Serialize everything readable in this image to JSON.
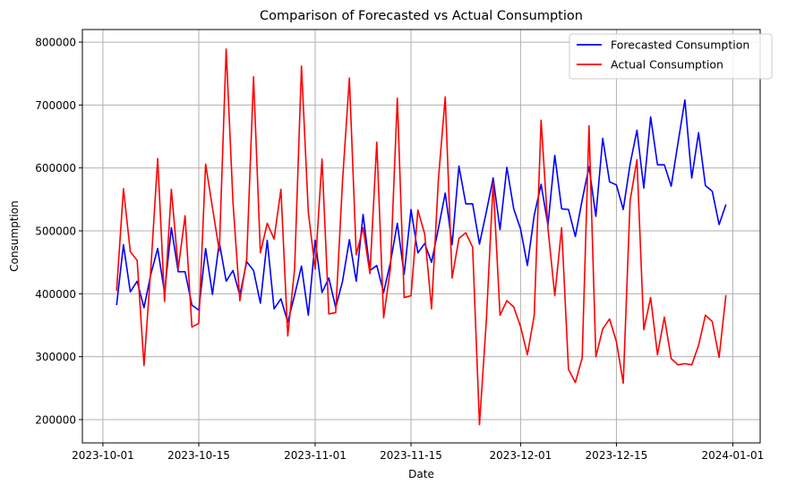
{
  "chart_data": {
    "type": "line",
    "title": "Comparison of Forecasted vs Actual Consumption",
    "xlabel": "Date",
    "ylabel": "Consumption",
    "x_start": "2023-10-03",
    "x_end": "2023-12-31",
    "xlim": [
      "2023-09-28",
      "2024-01-05"
    ],
    "ylim": [
      163000,
      820000
    ],
    "grid": true,
    "legend_position": "top-right",
    "x_ticks": [
      "2023-10-01",
      "2023-10-15",
      "2023-11-01",
      "2023-11-15",
      "2023-12-01",
      "2023-12-15",
      "2024-01-01"
    ],
    "y_ticks": [
      200000,
      300000,
      400000,
      500000,
      600000,
      700000,
      800000
    ],
    "series": [
      {
        "name": "Forecasted Consumption",
        "color": "#0000ff",
        "values": [
          382000,
          478000,
          403000,
          420000,
          378000,
          431000,
          472000,
          402000,
          505000,
          435000,
          435000,
          382000,
          374000,
          472000,
          399000,
          482000,
          420000,
          437000,
          398000,
          451000,
          437000,
          385000,
          485000,
          376000,
          392000,
          355000,
          398000,
          444000,
          366000,
          485000,
          402000,
          425000,
          378000,
          420000,
          486000,
          420000,
          526000,
          437000,
          445000,
          402000,
          450000,
          512000,
          431000,
          534000,
          465000,
          480000,
          450000,
          504000,
          560000,
          478000,
          603000,
          543000,
          543000,
          479000,
          530000,
          584000,
          502000,
          601000,
          535000,
          503000,
          445000,
          525000,
          574000,
          509000,
          620000,
          535000,
          534000,
          491000,
          549000,
          602000,
          523000,
          647000,
          578000,
          573000,
          534000,
          606000,
          660000,
          568000,
          681000,
          605000,
          605000,
          571000,
          640000,
          708000,
          584000,
          656000,
          572000,
          563000,
          510000,
          542000
        ]
      },
      {
        "name": "Actual Consumption",
        "color": "#ff0000",
        "values": [
          405000,
          567000,
          467000,
          453000,
          286000,
          440000,
          615000,
          388000,
          566000,
          440000,
          524000,
          347000,
          353000,
          606000,
          537000,
          468000,
          789000,
          545000,
          389000,
          455000,
          745000,
          465000,
          512000,
          487000,
          566000,
          333000,
          440000,
          762000,
          530000,
          439000,
          614000,
          368000,
          370000,
          580000,
          743000,
          462000,
          505000,
          432000,
          641000,
          362000,
          441000,
          711000,
          394000,
          397000,
          533000,
          495000,
          376000,
          582000,
          713000,
          425000,
          488000,
          497000,
          474000,
          192000,
          357000,
          577000,
          366000,
          389000,
          379000,
          348000,
          303000,
          366000,
          676000,
          504000,
          397000,
          505000,
          280000,
          259000,
          298000,
          667000,
          300000,
          344000,
          360000,
          324000,
          258000,
          548000,
          613000,
          343000,
          394000,
          303000,
          363000,
          297000,
          287000,
          289000,
          287000,
          318000,
          366000,
          356000,
          299000,
          398000
        ]
      }
    ]
  }
}
